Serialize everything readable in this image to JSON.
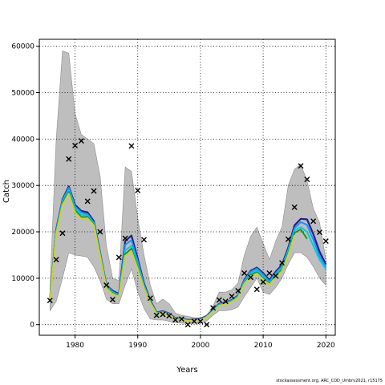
{
  "chart_data": {
    "type": "line",
    "xlabel": "Years",
    "ylabel": "Catch",
    "xlim": [
      1974.3,
      2021.5
    ],
    "ylim": [
      -2300,
      61500
    ],
    "xticks": [
      1980,
      1990,
      2000,
      2010,
      2020
    ],
    "yticks": [
      0,
      10000,
      20000,
      30000,
      40000,
      50000,
      60000
    ],
    "grid": true,
    "colors": {
      "band": "#bebebe",
      "band_edge": "#8c8c8c",
      "grid": "#000000",
      "series": [
        "#1f1f8f",
        "#1e90ff",
        "#00ced1",
        "#228b22",
        "#c8d23c"
      ]
    },
    "observed_catch": {
      "x": [
        1976,
        1977,
        1978,
        1979,
        1980,
        1981,
        1982,
        1983,
        1984,
        1985,
        1986,
        1987,
        1988,
        1989,
        1990,
        1991,
        1992,
        1993,
        1994,
        1995,
        1996,
        1997,
        1998,
        1999,
        2000,
        2001,
        2002,
        2003,
        2004,
        2005,
        2006,
        2007,
        2008,
        2009,
        2010,
        2011,
        2012,
        2013,
        2014,
        2015,
        2016,
        2017,
        2018,
        2019,
        2020
      ],
      "y": [
        5200,
        14000,
        19700,
        35700,
        38600,
        39600,
        26600,
        28800,
        20000,
        8500,
        5400,
        14500,
        18600,
        38500,
        28900,
        18300,
        5700,
        2000,
        2200,
        1900,
        1000,
        1200,
        0,
        700,
        700,
        0,
        3600,
        5300,
        5000,
        6100,
        7300,
        11100,
        10200,
        7600,
        9200,
        11100,
        10500,
        13300,
        18400,
        25300,
        34200,
        31300,
        22300,
        19900,
        18000
      ]
    },
    "band": {
      "x": [
        1976,
        1977,
        1978,
        1979,
        1980,
        1981,
        1982,
        1983,
        1984,
        1985,
        1986,
        1987,
        1988,
        1989,
        1990,
        1991,
        1992,
        1993,
        1994,
        1995,
        1996,
        1997,
        1998,
        1999,
        2000,
        2001,
        2002,
        2003,
        2004,
        2005,
        2006,
        2007,
        2008,
        2009,
        2010,
        2011,
        2012,
        2013,
        2014,
        2015,
        2016,
        2017,
        2018,
        2019,
        2020
      ],
      "upper": [
        8000,
        40000,
        59000,
        58500,
        45500,
        41000,
        40000,
        39000,
        32000,
        17000,
        10000,
        9500,
        34000,
        33000,
        23000,
        15000,
        8500,
        4500,
        5500,
        4500,
        2500,
        2000,
        1800,
        1500,
        1500,
        2000,
        4000,
        7000,
        7000,
        7500,
        9000,
        15000,
        19000,
        21000,
        17500,
        14000,
        18000,
        21000,
        30000,
        33500,
        34500,
        31000,
        25000,
        22000,
        14000
      ],
      "lower": [
        3000,
        5000,
        10000,
        15500,
        15000,
        14800,
        14500,
        12500,
        9500,
        5500,
        4500,
        4500,
        8500,
        12000,
        7000,
        3500,
        1200,
        1000,
        1000,
        700,
        400,
        300,
        200,
        300,
        300,
        800,
        2000,
        3000,
        3000,
        3200,
        3800,
        6000,
        8000,
        10000,
        7000,
        6500,
        8000,
        10000,
        13000,
        15500,
        15500,
        14500,
        12500,
        10000,
        8500
      ]
    },
    "series": [
      {
        "x": [
          1976,
          1977,
          1978,
          1979,
          1980,
          1981,
          1982,
          1983,
          1984,
          1985,
          1986,
          1987,
          1988,
          1989,
          1990,
          1991,
          1992,
          1993,
          1994,
          1995,
          1996,
          1997,
          1998,
          1999,
          2000,
          2001,
          2002,
          2003,
          2004,
          2005,
          2006,
          2007,
          2008,
          2009,
          2010,
          2011,
          2012,
          2013,
          2014,
          2015,
          2016,
          2017,
          2018,
          2019,
          2020
        ],
        "values": [
          5500,
          20500,
          27000,
          29800,
          25800,
          24500,
          24200,
          22300,
          15500,
          8500,
          7300,
          6600,
          18000,
          19200,
          14200,
          8900,
          5200,
          2600,
          2900,
          2400,
          1400,
          1300,
          1000,
          1100,
          1200,
          1900,
          3100,
          4500,
          4800,
          5300,
          6300,
          9700,
          11600,
          12300,
          11100,
          9600,
          11400,
          12900,
          16600,
          21400,
          22800,
          22700,
          19500,
          15700,
          13000
        ]
      },
      {
        "x": [
          1976,
          1977,
          1978,
          1979,
          1980,
          1981,
          1982,
          1983,
          1984,
          1985,
          1986,
          1987,
          1988,
          1989,
          1990,
          1991,
          1992,
          1993,
          1994,
          1995,
          1996,
          1997,
          1998,
          1999,
          2000,
          2001,
          2002,
          2003,
          2004,
          2005,
          2006,
          2007,
          2008,
          2009,
          2010,
          2011,
          2012,
          2013,
          2014,
          2015,
          2016,
          2017,
          2018,
          2019,
          2020
        ],
        "values": [
          5400,
          20300,
          26800,
          29500,
          25500,
          24200,
          23800,
          22000,
          15300,
          8400,
          7100,
          6400,
          17200,
          18200,
          13600,
          8600,
          5000,
          2500,
          2800,
          2300,
          1300,
          1200,
          900,
          1000,
          1100,
          1800,
          3000,
          4400,
          4700,
          5200,
          6200,
          9500,
          11400,
          12100,
          10800,
          9300,
          11100,
          12600,
          16200,
          20800,
          22100,
          21500,
          18300,
          14800,
          12500
        ]
      },
      {
        "x": [
          1976,
          1977,
          1978,
          1979,
          1980,
          1981,
          1982,
          1983,
          1984,
          1985,
          1986,
          1987,
          1988,
          1989,
          1990,
          1991,
          1992,
          1993,
          1994,
          1995,
          1996,
          1997,
          1998,
          1999,
          2000,
          2001,
          2002,
          2003,
          2004,
          2005,
          2006,
          2007,
          2008,
          2009,
          2010,
          2011,
          2012,
          2013,
          2014,
          2015,
          2016,
          2017,
          2018,
          2019,
          2020
        ],
        "values": [
          5300,
          20000,
          26500,
          29000,
          25000,
          23700,
          23500,
          21800,
          15100,
          8200,
          7000,
          6200,
          16000,
          17000,
          13000,
          8300,
          4900,
          2400,
          2700,
          2200,
          1250,
          1150,
          850,
          950,
          1050,
          1700,
          2900,
          4300,
          4600,
          5100,
          6000,
          9200,
          11000,
          11700,
          10400,
          9000,
          10800,
          12200,
          15800,
          20300,
          21000,
          20000,
          17000,
          14000,
          12000
        ]
      },
      {
        "x": [
          1976,
          1977,
          1978,
          1979,
          1980,
          1981,
          1982,
          1983,
          1984,
          1985,
          1986,
          1987,
          1988,
          1989,
          1990,
          1991,
          1992,
          1993,
          1994,
          1995,
          1996,
          1997,
          1998,
          1999,
          2000,
          2001,
          2002,
          2003,
          2004,
          2005,
          2006,
          2007,
          2008,
          2009,
          2010,
          2011,
          2012,
          2013,
          2014,
          2015,
          2016,
          2017,
          2018,
          2019,
          2020
        ],
        "values": [
          5200,
          19800,
          26200,
          28600,
          24600,
          23200,
          23200,
          21600,
          14900,
          8000,
          6800,
          6100,
          15200,
          16400,
          12400,
          8000,
          4800,
          2350,
          2600,
          2150,
          1200,
          1100,
          800,
          900,
          1000,
          1650,
          2850,
          4200,
          4500,
          5000,
          5900,
          9000,
          10700,
          11300,
          10000,
          8800,
          10500,
          11800,
          15400,
          19800,
          20500,
          18500,
          null,
          null,
          null
        ]
      },
      {
        "x": [
          1976,
          1977,
          1978,
          1979,
          1980,
          1981,
          1982,
          1983,
          1984,
          1985,
          1986,
          1987,
          1988,
          1989,
          1990,
          1991,
          1992,
          1993,
          1994,
          1995,
          1996,
          1997,
          1998,
          1999,
          2000,
          2001,
          2002,
          2003,
          2004,
          2005,
          2006,
          2007,
          2008,
          2009,
          2010,
          2011,
          2012,
          2013,
          2014,
          2015,
          2016,
          2017,
          2018,
          2019,
          2020
        ],
        "values": [
          5000,
          19500,
          25800,
          28200,
          24200,
          22800,
          22900,
          21400,
          14700,
          7800,
          6600,
          6000,
          14800,
          15800,
          12000,
          7800,
          4700,
          2300,
          2500,
          2100,
          1150,
          1050,
          780,
          880,
          980,
          1600,
          2800,
          4100,
          4400,
          4900,
          5800,
          8800,
          10400,
          11000,
          9700,
          8600,
          10200,
          11500,
          15000,
          19300,
          null,
          null,
          null,
          null,
          null
        ]
      }
    ]
  },
  "footer": "stockassessment.org, ARC_COD_Umbrv2021, r15175"
}
